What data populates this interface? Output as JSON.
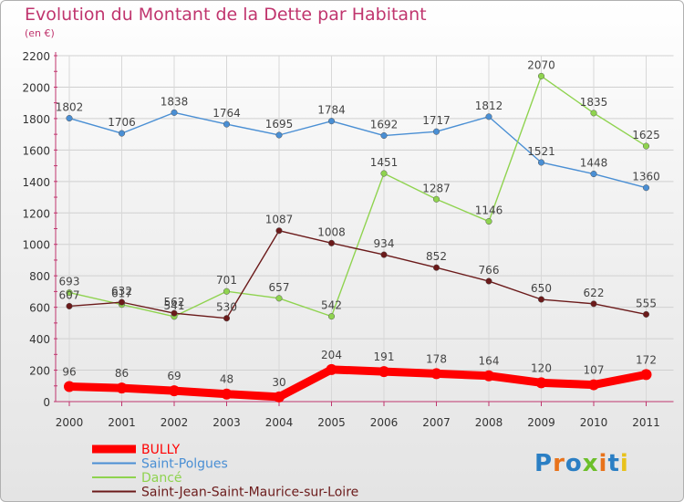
{
  "chart_data": {
    "type": "line",
    "title": "Evolution du Montant de la Dette par Habitant",
    "subtitle": "(en €)",
    "categories": [
      "2000",
      "2001",
      "2002",
      "2003",
      "2004",
      "2005",
      "2006",
      "2007",
      "2008",
      "2009",
      "2010",
      "2011"
    ],
    "ylim": [
      0,
      2200
    ],
    "yticks": [
      0,
      200,
      400,
      600,
      800,
      1000,
      1200,
      1400,
      1600,
      1800,
      2000,
      2200
    ],
    "grid": true,
    "legend_position": "bottom-left",
    "series": [
      {
        "name": "BULLY",
        "color": "#ff0000",
        "values": [
          96,
          86,
          69,
          48,
          30,
          204,
          191,
          178,
          164,
          120,
          107,
          172
        ]
      },
      {
        "name": "Saint-Polgues",
        "color": "#4a8fd4",
        "values": [
          1802,
          1706,
          1838,
          1764,
          1695,
          1784,
          1692,
          1717,
          1812,
          1521,
          1448,
          1360
        ]
      },
      {
        "name": "Dancé",
        "color": "#8fd34f",
        "values": [
          693,
          617,
          541,
          701,
          657,
          542,
          1451,
          1287,
          1146,
          2070,
          1835,
          1625
        ]
      },
      {
        "name": "Saint-Jean-Saint-Maurice-sur-Loire",
        "color": "#6b1a1a",
        "values": [
          607,
          632,
          562,
          530,
          1087,
          1008,
          934,
          852,
          766,
          650,
          622,
          555
        ]
      }
    ]
  },
  "logo": {
    "text": "Proxiti"
  }
}
